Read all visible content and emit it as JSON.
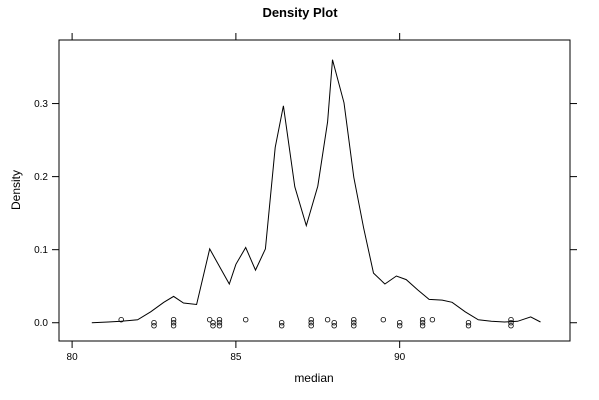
{
  "chart_data": {
    "type": "line",
    "title": "Density Plot",
    "xlabel": "median",
    "ylabel": "Density",
    "xlim": [
      79.6,
      95.2
    ],
    "ylim": [
      -0.025,
      0.387
    ],
    "x_ticks": [
      80,
      85,
      90
    ],
    "y_ticks": [
      0.0,
      0.1,
      0.2,
      0.3
    ],
    "x_tick_labels": [
      "80",
      "85",
      "90"
    ],
    "y_tick_labels": [
      "0.0",
      "0.1",
      "0.2",
      "0.3"
    ],
    "grid": false,
    "legend": "none",
    "series": [
      {
        "x": [
          80.6,
          81.1,
          81.5,
          82.0,
          82.4,
          82.8,
          83.1,
          83.4,
          83.8,
          84.2,
          84.5,
          84.8,
          85.0,
          85.3,
          85.6,
          85.9,
          86.2,
          86.45,
          86.8,
          87.15,
          87.5,
          87.8,
          87.95,
          88.3,
          88.6,
          88.9,
          89.2,
          89.55,
          89.9,
          90.2,
          90.55,
          90.9,
          91.3,
          91.6,
          92.0,
          92.4,
          92.8,
          93.2,
          93.6,
          94.0,
          94.3
        ],
        "y": [
          0.0,
          0.001,
          0.002,
          0.004,
          0.015,
          0.028,
          0.036,
          0.027,
          0.025,
          0.101,
          0.077,
          0.053,
          0.08,
          0.103,
          0.072,
          0.101,
          0.24,
          0.297,
          0.186,
          0.133,
          0.187,
          0.275,
          0.36,
          0.301,
          0.199,
          0.13,
          0.068,
          0.053,
          0.064,
          0.059,
          0.045,
          0.032,
          0.031,
          0.028,
          0.015,
          0.004,
          0.002,
          0.001,
          0.002,
          0.008,
          0.001
        ]
      }
    ],
    "rug": {
      "y": 0.0,
      "x": [
        81.5,
        82.5,
        83.1,
        84.2,
        84.3,
        84.5,
        85.3,
        86.4,
        87.3,
        87.8,
        88.0,
        88.6,
        89.5,
        90.0,
        90.7,
        91.0,
        92.1,
        93.4
      ]
    }
  }
}
